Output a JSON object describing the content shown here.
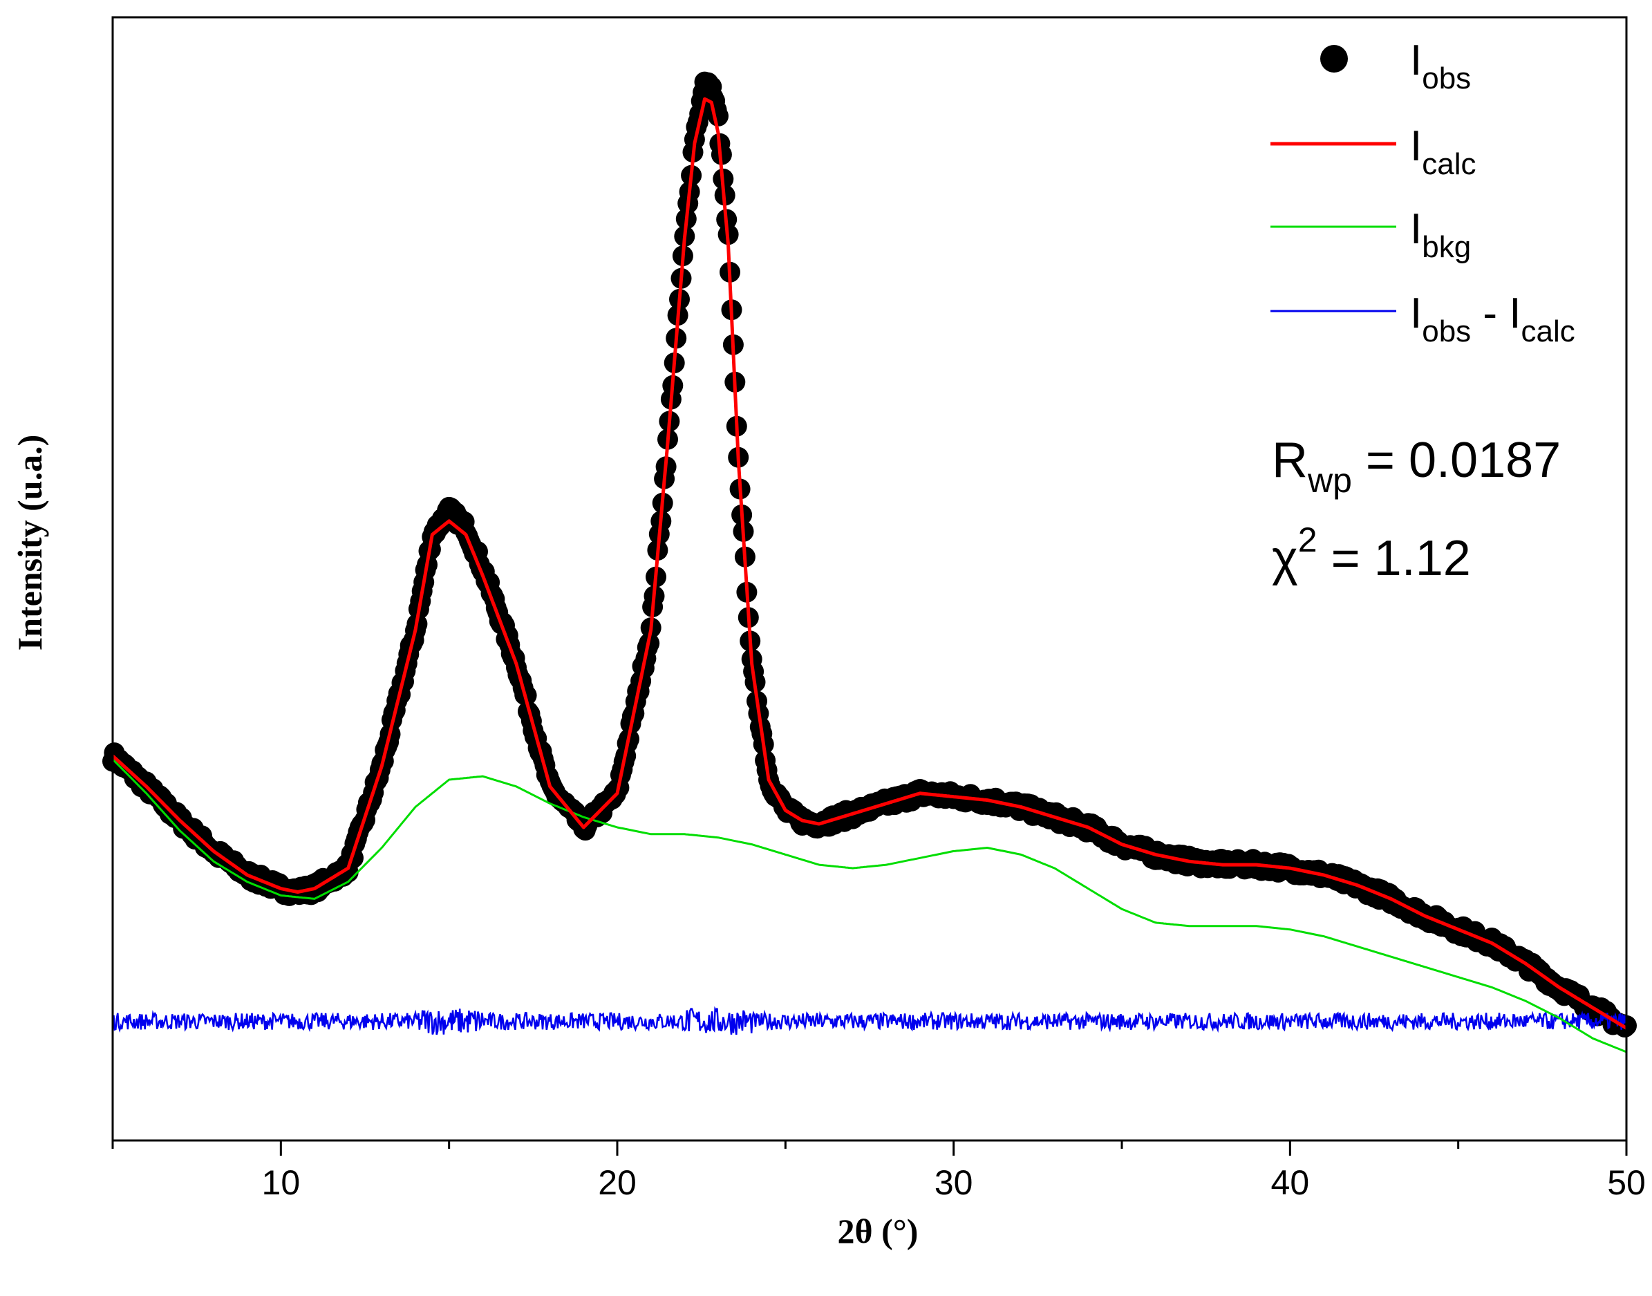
{
  "chart_data": {
    "type": "line",
    "xlabel": "2θ (°)",
    "ylabel": "Intensity (u.a.)",
    "xlim": [
      5,
      50
    ],
    "ylim": [
      -10,
      320
    ],
    "x_ticks_major": [
      10,
      20,
      30,
      40,
      50
    ],
    "x_ticks_minor": [
      5,
      15,
      25,
      35,
      45
    ],
    "y_ticks_visible": false,
    "grid": false,
    "legend_position": "top-right",
    "series": [
      {
        "name": "I",
        "name_sub": "obs",
        "style": "markers",
        "color": "#000000",
        "x": [
          5.0,
          6.0,
          7.0,
          8.0,
          9.0,
          10.0,
          10.5,
          11.0,
          12.0,
          13.0,
          14.0,
          14.5,
          15.0,
          15.5,
          16.0,
          17.0,
          18.0,
          19.0,
          20.0,
          21.0,
          21.5,
          22.0,
          22.3,
          22.6,
          22.8,
          23.0,
          23.3,
          23.6,
          24.0,
          24.5,
          25.0,
          25.5,
          26.0,
          27.0,
          28.0,
          29.0,
          30.0,
          31.0,
          32.0,
          33.0,
          34.0,
          35.0,
          36.0,
          37.0,
          38.0,
          39.0,
          40.0,
          41.0,
          42.0,
          43.0,
          44.0,
          45.0,
          46.0,
          47.0,
          48.0,
          49.0,
          50.0
        ],
        "y": [
          103,
          94,
          84,
          75,
          68,
          64,
          63,
          64,
          70,
          100,
          140,
          168,
          175,
          170,
          158,
          130,
          94,
          82,
          92,
          140,
          195,
          255,
          285,
          300,
          299,
          290,
          255,
          190,
          130,
          96,
          87,
          84,
          83,
          86,
          89,
          92,
          91,
          90,
          88,
          85,
          82,
          77,
          74,
          72,
          71,
          71,
          70,
          68,
          65,
          61,
          56,
          52,
          48,
          42,
          35,
          29,
          23
        ]
      },
      {
        "name": "I",
        "name_sub": "calc",
        "style": "line",
        "color": "#ff0000",
        "x": [
          5.0,
          6.0,
          7.0,
          8.0,
          9.0,
          10.0,
          10.5,
          11.0,
          12.0,
          13.0,
          14.0,
          14.5,
          15.0,
          15.5,
          16.0,
          17.0,
          18.0,
          19.0,
          20.0,
          21.0,
          21.5,
          22.0,
          22.3,
          22.6,
          22.8,
          23.0,
          23.3,
          23.6,
          24.0,
          24.5,
          25.0,
          25.5,
          26.0,
          27.0,
          28.0,
          29.0,
          30.0,
          31.0,
          32.0,
          33.0,
          34.0,
          35.0,
          36.0,
          37.0,
          38.0,
          39.0,
          40.0,
          41.0,
          42.0,
          43.0,
          44.0,
          45.0,
          46.0,
          47.0,
          48.0,
          49.0,
          50.0
        ],
        "y": [
          103,
          94,
          84,
          75,
          68,
          64,
          63,
          64,
          70,
          100,
          140,
          168,
          172,
          168,
          156,
          130,
          94,
          82,
          92,
          140,
          195,
          255,
          283,
          296,
          295,
          286,
          253,
          190,
          130,
          96,
          87,
          84,
          83,
          86,
          89,
          92,
          91,
          90,
          88,
          85,
          82,
          77,
          74,
          72,
          71,
          71,
          70,
          68,
          65,
          61,
          56,
          52,
          48,
          42,
          35,
          29,
          23
        ]
      },
      {
        "name": "I",
        "name_sub": "bkg",
        "style": "line",
        "color": "#00dd00",
        "x": [
          5.0,
          6.0,
          7.0,
          8.0,
          9.0,
          10.0,
          11.0,
          12.0,
          13.0,
          14.0,
          15.0,
          16.0,
          17.0,
          18.0,
          19.0,
          20.0,
          21.0,
          22.0,
          23.0,
          24.0,
          25.0,
          26.0,
          27.0,
          28.0,
          29.0,
          30.0,
          31.0,
          32.0,
          33.0,
          34.0,
          35.0,
          36.0,
          37.0,
          38.0,
          39.0,
          40.0,
          41.0,
          42.0,
          43.0,
          44.0,
          45.0,
          46.0,
          47.0,
          48.0,
          49.0,
          50.0
        ],
        "y": [
          102,
          92,
          81,
          72,
          66,
          62,
          61,
          66,
          76,
          88,
          96,
          97,
          94,
          89,
          85,
          82,
          80,
          80,
          79,
          77,
          74,
          71,
          70,
          71,
          73,
          75,
          76,
          74,
          70,
          64,
          58,
          54,
          53,
          53,
          53,
          52,
          50,
          47,
          44,
          41,
          38,
          35,
          31,
          26,
          20,
          16
        ]
      },
      {
        "name": "I",
        "name_sub": "obs",
        "name_suffix": " - I",
        "name_suffix_sub": "calc",
        "style": "line",
        "color": "#0000ee",
        "x_range": [
          5,
          50
        ],
        "baseline": 25,
        "noise_amplitude": 2.5
      }
    ],
    "annotations": [
      {
        "text": "R",
        "sub": "wp",
        "value": " = 0.0187"
      },
      {
        "text": "χ",
        "sup": "2",
        "value": " = 1.12"
      }
    ]
  }
}
